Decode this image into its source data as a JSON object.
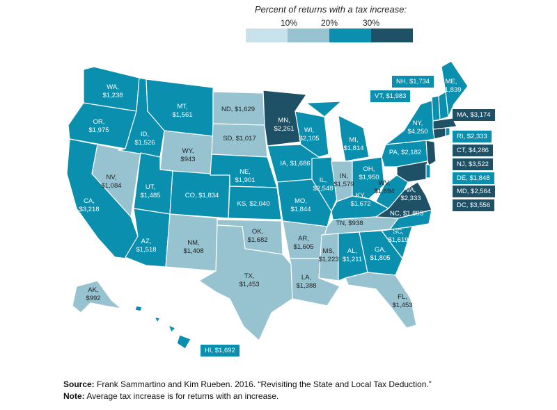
{
  "legend": {
    "title": "Percent of returns with a tax increase:",
    "ticks": [
      "10%",
      "20%",
      "30%"
    ],
    "colors": [
      "#c7e2ea",
      "#97c2d0",
      "#0a8fae",
      "#1e5066"
    ]
  },
  "states": {
    "WA": "WA,\n$1,238",
    "OR": "OR,\n$1,975",
    "CA": "CA,\n$3,218",
    "NV": "NV,\n$1,084",
    "ID": "ID,\n$1,526",
    "MT": "MT,\n$1,561",
    "WY": "WY,\n$943",
    "UT": "UT,\n$1,485",
    "AZ": "AZ,\n$1,518",
    "CO": "CO, $1,834",
    "NM": "NM,\n$1,408",
    "ND": "ND, $1,629",
    "SD": "SD, $1,017",
    "NE": "NE,\n$1,901",
    "KS": "KS, $2,040",
    "OK": "OK,\n$1,682",
    "TX": "TX,\n$1,453",
    "MN": "MN,\n$2,261",
    "IA": "IA, $1,686",
    "MO": "MO,\n$1,844",
    "AR": "AR,\n$1,605",
    "LA": "LA,\n$1,388",
    "WI": "WI,\n$2,105",
    "IL": "IL,\n$2,548",
    "MI": "MI,\n$1,814",
    "IN": "IN,\n$1,579",
    "OH": "OH,\n$1,950",
    "KY": "KY,\n$1,672",
    "TN": "TN, $938",
    "MS": "MS,\n$1,223",
    "AL": "AL,\n$1,211",
    "GA": "GA,\n$1,805",
    "FL": "FL,\n$1,453",
    "SC": "SC,\n$1,619",
    "NC": "NC, $1,895",
    "VA": "VA,\n$2,333",
    "WV": "WV,\n$1,694",
    "PA": "PA, $2,182",
    "NY": "NY,\n$4,250",
    "ME": "ME,\n$1,839",
    "AK": "AK,\n$992"
  },
  "callouts": {
    "NH": "NH, $1,734",
    "VT": "VT, $1,983",
    "MA": "MA, $3,174",
    "RI": "RI, $2,333",
    "CT": "CT, $4,286",
    "NJ": "NJ, $3,522",
    "DE": "DE, $1,848",
    "MD": "MD, $2,564",
    "DC": "DC, $3,556",
    "HI": "HI, $1,692"
  },
  "source": {
    "source_label": "Source:",
    "source_text": " Frank Sammartino and Kim Rueben. 2016. “Revisiting the State and Local Tax Deduction.”",
    "note_label": "Note:",
    "note_text": " Average tax increase is for returns with an increase."
  }
}
